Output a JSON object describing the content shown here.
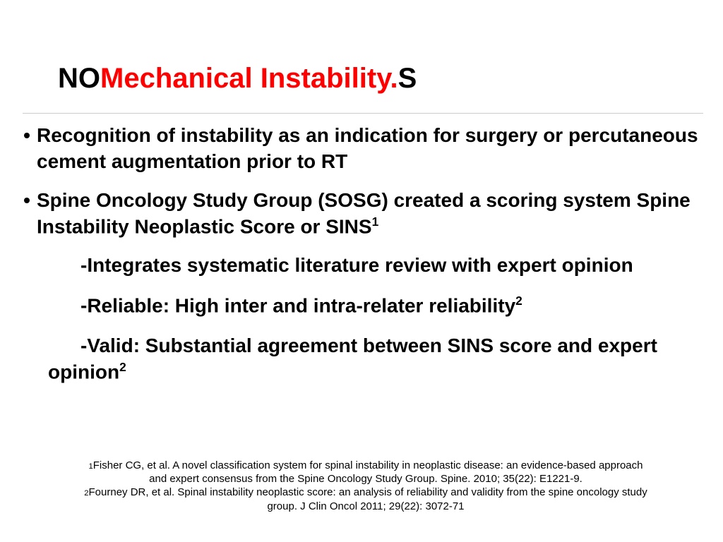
{
  "title": {
    "prefix": "NO",
    "main": "Mechanical Instability.",
    "suffix": "S",
    "prefix_color": "#000000",
    "main_color": "#ff0000",
    "suffix_color": "#000000",
    "font_size_pt": 30,
    "font_weight": "700"
  },
  "divider_color": "#cccccc",
  "bullets": [
    {
      "text": "Recognition of instability as an indication for surgery or percutaneous cement augmentation prior to RT"
    },
    {
      "text_before_sup": "Spine Oncology Study Group (SOSG) created a scoring system  Spine Instability Neoplastic Score or SINS",
      "sup": "1"
    }
  ],
  "subpoints": [
    {
      "text": "Integrates systematic literature review with expert opinion"
    },
    {
      "text_before_sup": "Reliable: High inter and intra-relater reliability",
      "sup": "2"
    },
    {
      "text_before_sup": "Valid: Substantial agreement between SINS score and expert opinion",
      "sup": "2"
    }
  ],
  "references": [
    {
      "num": "1",
      "text": "Fisher CG,  et al. A novel classification system for spinal instability in neoplastic disease: an evidence-based approach and expert consensus from the Spine Oncology Study Group. Spine. 2010; 35(22): E1221-9."
    },
    {
      "num": "2",
      "text": "Fourney DR,  et al. Spinal instability neoplastic score: an analysis of reliability and validity from the spine oncology study group. J Clin Oncol 2011; 29(22): 3072-71"
    }
  ],
  "body_font_size_pt": 21,
  "body_font_weight": "700",
  "ref_font_size_pt": 11,
  "background_color": "#ffffff",
  "text_color": "#000000"
}
